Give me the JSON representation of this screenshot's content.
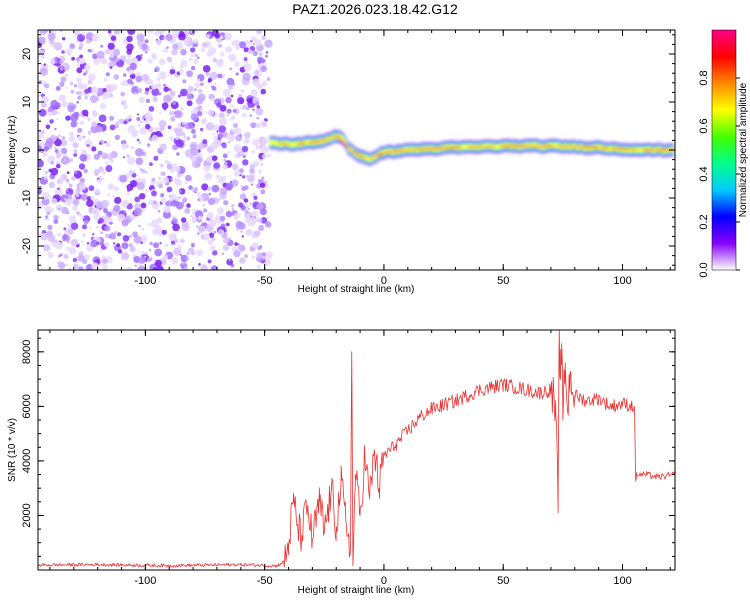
{
  "title": "PAZ1.2026.023.18.42.G12",
  "chart_data": [
    {
      "type": "heatmap",
      "xlabel": "Height of straight line (km)",
      "ylabel": "Frequency (Hz)",
      "xlim": [
        -145,
        122
      ],
      "ylim": [
        -25,
        25
      ],
      "x_ticks": [
        "-100",
        "-50",
        "0",
        "50",
        "100"
      ],
      "x_tick_values": [
        -100,
        -50,
        0,
        50,
        100
      ],
      "y_ticks": [
        "-20",
        "-10",
        "0",
        "10",
        "20"
      ],
      "y_tick_values": [
        -20,
        -10,
        0,
        10,
        20
      ],
      "noise_region_x": [
        -145,
        -48
      ],
      "signal_region_x": [
        -48,
        122
      ],
      "signal_track": {
        "x": [
          -48,
          -40,
          -30,
          -25,
          -20,
          -17,
          -15,
          -12,
          -10,
          -6,
          0,
          10,
          30,
          50,
          70,
          90,
          100,
          110,
          122
        ],
        "freq": [
          1.5,
          1.2,
          1.5,
          2.0,
          3.0,
          2.5,
          0.5,
          -0.8,
          -1.5,
          -1.8,
          -0.5,
          0.0,
          0.5,
          0.8,
          0.8,
          0.5,
          0.2,
          0.0,
          0.0
        ]
      },
      "colorbar": {
        "label": "Normalized spectral amplitude",
        "range": [
          0,
          1
        ],
        "ticks": [
          "0.0",
          "0.2",
          "0.4",
          "0.6",
          "0.8"
        ],
        "tick_values": [
          0.0,
          0.2,
          0.4,
          0.6,
          0.8
        ],
        "colors": [
          "#ffffff",
          "#8800ff",
          "#0000ff",
          "#00ccff",
          "#00ff88",
          "#44ff00",
          "#ffff00",
          "#ff8800",
          "#ff0000",
          "#ff0088"
        ]
      }
    },
    {
      "type": "line",
      "xlabel": "Height of straight line (km)",
      "ylabel": "SNR (10 * v/v)",
      "xlim": [
        -145,
        122
      ],
      "ylim": [
        0,
        8800
      ],
      "x_ticks": [
        "-100",
        "-50",
        "0",
        "50",
        "100"
      ],
      "x_tick_values": [
        -100,
        -50,
        0,
        50,
        100
      ],
      "y_ticks": [
        "2000",
        "4000",
        "6000",
        "8000"
      ],
      "y_tick_values": [
        2000,
        4000,
        6000,
        8000
      ],
      "series": [
        {
          "name": "SNR",
          "color": "#ee3030",
          "x": [
            -145,
            -120,
            -90,
            -60,
            -45,
            -42,
            -40,
            -38,
            -35,
            -32,
            -30,
            -27,
            -25,
            -22,
            -20,
            -18,
            -16,
            -14,
            -13.5,
            -13,
            -12,
            -10,
            -8,
            -6,
            -4,
            -2,
            0,
            5,
            10,
            15,
            20,
            30,
            40,
            50,
            55,
            60,
            65,
            70,
            72,
            73,
            73.5,
            74,
            74.5,
            75,
            76,
            77,
            78,
            80,
            85,
            90,
            95,
            100,
            105,
            105.5,
            106,
            110,
            115,
            122
          ],
          "y": [
            180,
            200,
            160,
            200,
            150,
            300,
            900,
            2500,
            1200,
            2300,
            1100,
            2500,
            1400,
            2900,
            1600,
            3200,
            1800,
            900,
            8000,
            150,
            3500,
            2000,
            4200,
            2600,
            4400,
            3000,
            4200,
            4600,
            5100,
            5600,
            5900,
            6200,
            6600,
            6800,
            6700,
            6600,
            6500,
            6600,
            5800,
            2100,
            8800,
            7000,
            8300,
            5500,
            7600,
            5800,
            7200,
            6400,
            6200,
            6300,
            6000,
            6100,
            6000,
            3300,
            3500,
            3500,
            3400,
            3500
          ]
        }
      ]
    }
  ]
}
